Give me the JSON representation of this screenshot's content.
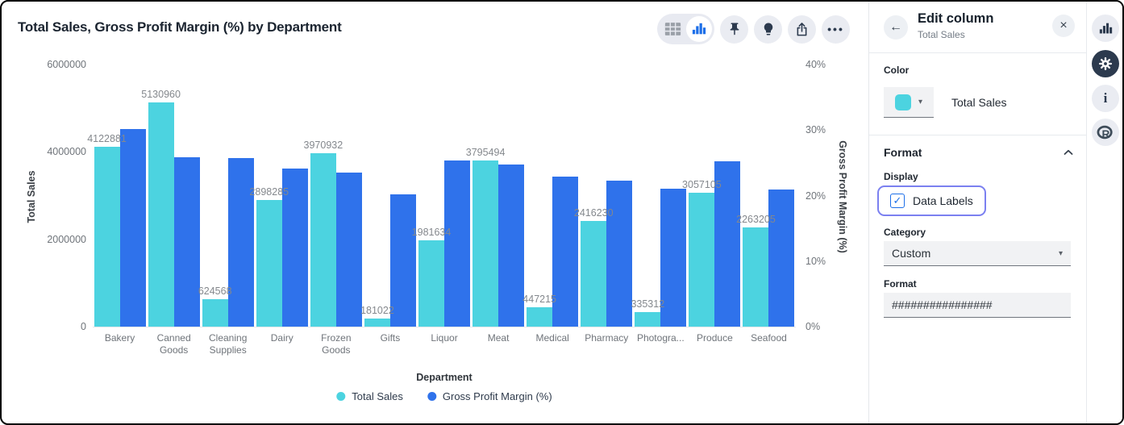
{
  "chart_data": {
    "type": "bar",
    "title": "Total Sales, Gross Profit Margin (%) by Department",
    "categories": [
      "Bakery",
      "Canned Goods",
      "Cleaning Supplies",
      "Dairy",
      "Frozen Goods",
      "Gifts",
      "Liquor",
      "Meat",
      "Medical",
      "Pharmacy",
      "Photogra...",
      "Produce",
      "Seafood"
    ],
    "series": [
      {
        "name": "Total Sales",
        "axis": "left",
        "color": "#4CD3E0",
        "data_labels": true,
        "values": [
          4122881,
          5130960,
          624568,
          2898285,
          3970932,
          181022,
          1981634,
          3795494,
          447215,
          2416230,
          335312,
          3057105,
          2263205
        ]
      },
      {
        "name": "Gross Profit Margin (%)",
        "axis": "right",
        "color": "#2F72EB",
        "data_labels": false,
        "values": [
          30.1,
          25.9,
          25.7,
          24.1,
          23.5,
          20.2,
          25.4,
          24.7,
          22.9,
          22.3,
          21.0,
          25.2,
          20.9
        ]
      }
    ],
    "xlabel": "Department",
    "ylabel_left": "Total Sales",
    "ylabel_right": "Gross Profit Margin (%)",
    "y_left_ticks": [
      "6000000",
      "4000000",
      "2000000",
      "0"
    ],
    "y_right_ticks": [
      "40%",
      "30%",
      "20%",
      "10%",
      "0%"
    ],
    "ylim_left": [
      0,
      6000000
    ],
    "ylim_right": [
      0,
      40
    ],
    "grid": false,
    "legend_position": "bottom"
  },
  "toolbar": {
    "view_toggle": [
      "table-view",
      "chart-view"
    ],
    "buttons": [
      "pin",
      "lightbulb",
      "export",
      "more-options"
    ]
  },
  "panel": {
    "title": "Edit column",
    "subtitle": "Total Sales",
    "color_section_label": "Color",
    "color_series_name": "Total Sales",
    "format_section_label": "Format",
    "display_label": "Display",
    "data_labels_label": "Data Labels",
    "data_labels_checked": true,
    "category_label": "Category",
    "category_value": "Custom",
    "format_field_label": "Format",
    "format_field_value": "################"
  },
  "icons": {
    "back_arrow": "←",
    "close": "×",
    "dropdown_caret": "▾",
    "checkbox_check": "✓",
    "more_dots": "•••",
    "info": "i"
  },
  "colors": {
    "teal": "#4CD3E0",
    "blue": "#2F72EB",
    "accent_blue": "#1D6FE8",
    "highlight_purple": "#7B80F0",
    "icon_dark": "#2C3A4E"
  }
}
